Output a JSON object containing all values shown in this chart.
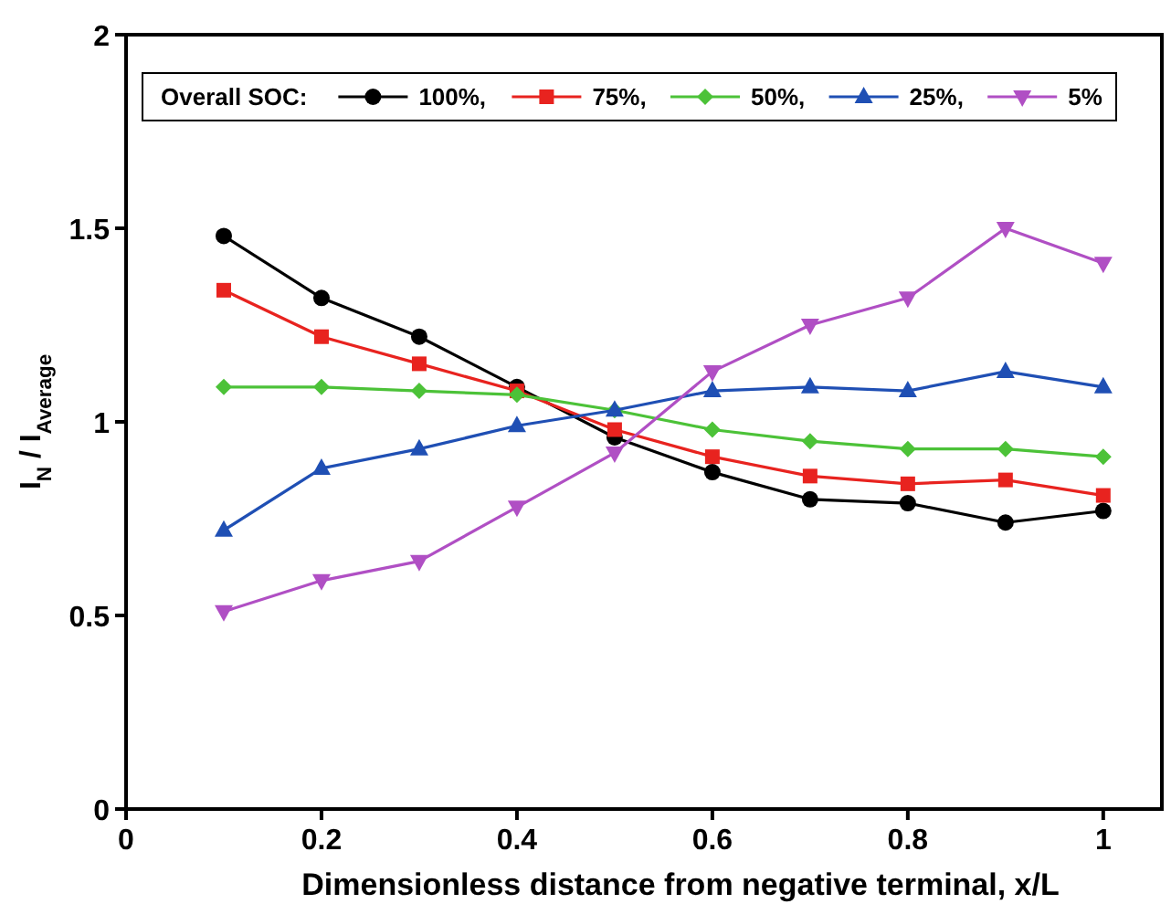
{
  "chart_data": {
    "type": "line",
    "xlabel": "Dimensionless distance from negative terminal, x/L",
    "ylabel": "I$_{N}$ / I$_{Average}$",
    "legend_title": "Overall SOC:",
    "legend": "top",
    "grid": false,
    "x": [
      0.1,
      0.2,
      0.3,
      0.4,
      0.5,
      0.6,
      0.7,
      0.8,
      0.9,
      1
    ],
    "xlim": [
      0,
      1.06
    ],
    "xticks": [
      0,
      0.2,
      0.4,
      0.6,
      0.8,
      1
    ],
    "ylim": [
      0,
      2
    ],
    "yticks": [
      0,
      0.5,
      1,
      1.5,
      2
    ],
    "series": [
      {
        "name": "100%,",
        "color": "#000000",
        "marker": "circle",
        "values": [
          1.48,
          1.32,
          1.22,
          1.09,
          0.96,
          0.87,
          0.8,
          0.79,
          0.74,
          0.77
        ]
      },
      {
        "name": "75%,",
        "color": "#e8231f",
        "marker": "square",
        "values": [
          1.34,
          1.22,
          1.15,
          1.08,
          0.98,
          0.91,
          0.86,
          0.84,
          0.85,
          0.81
        ]
      },
      {
        "name": "50%,",
        "color": "#4cc238",
        "marker": "diamond",
        "values": [
          1.09,
          1.09,
          1.08,
          1.07,
          1.03,
          0.98,
          0.95,
          0.93,
          0.93,
          0.91
        ]
      },
      {
        "name": "25%,",
        "color": "#1f4fb4",
        "marker": "triangle",
        "values": [
          0.72,
          0.88,
          0.93,
          0.99,
          1.03,
          1.08,
          1.09,
          1.08,
          1.13,
          1.09
        ]
      },
      {
        "name": "5%",
        "color": "#b04fc4",
        "marker": "triangle-down",
        "values": [
          0.51,
          0.59,
          0.64,
          0.78,
          0.92,
          1.13,
          1.25,
          1.32,
          1.5,
          1.41
        ]
      }
    ]
  }
}
